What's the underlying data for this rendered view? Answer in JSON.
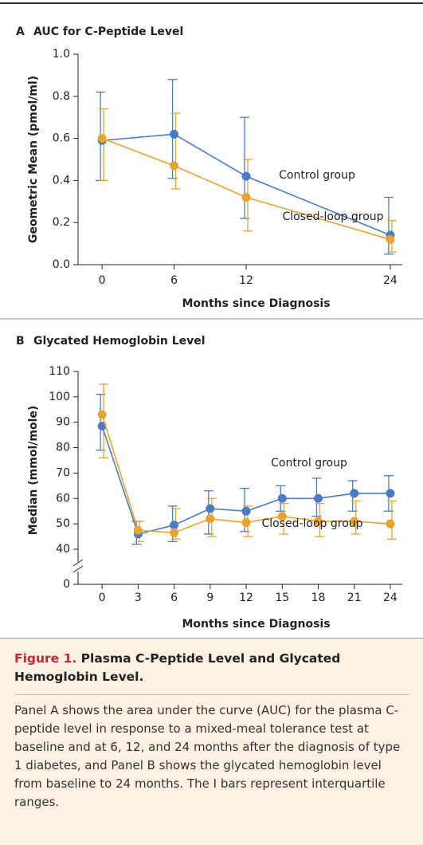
{
  "chart_data": [
    {
      "type": "line",
      "panel": "A",
      "title": "AUC for C-Peptide Level",
      "x_label": "Months since Diagnosis",
      "y_label": "Geometric Mean (pmol/ml)",
      "x": [
        0,
        6,
        12,
        24
      ],
      "xlim": [
        -2,
        25
      ],
      "xticks": [
        0,
        6,
        12,
        24
      ],
      "ylim": [
        0,
        1
      ],
      "yticks": [
        {
          "value": 0,
          "label": "0.0"
        },
        0.2,
        0.4,
        0.6,
        0.8,
        {
          "value": 1,
          "label": "1.0"
        }
      ],
      "series": [
        {
          "name": "Control group",
          "color": "#4a7cc4",
          "values": [
            0.59,
            0.62,
            0.42,
            0.14
          ],
          "lower": [
            0.4,
            0.41,
            0.22,
            0.05
          ],
          "upper": [
            0.82,
            0.88,
            0.7,
            0.32
          ]
        },
        {
          "name": "Closed-loop group",
          "color": "#e8a331",
          "values": [
            0.6,
            0.47,
            0.32,
            0.12
          ],
          "lower": [
            0.4,
            0.36,
            0.16,
            0.06
          ],
          "upper": [
            0.74,
            0.72,
            0.5,
            0.21
          ]
        }
      ]
    },
    {
      "type": "line",
      "panel": "B",
      "title": "Glycated Hemoglobin Level",
      "x_label": "Months since Diagnosis",
      "y_label": "Median (mmol/mole)",
      "x": [
        0,
        3,
        6,
        9,
        12,
        15,
        18,
        21,
        24
      ],
      "xlim": [
        -2,
        25
      ],
      "xticks": [
        0,
        3,
        6,
        9,
        12,
        15,
        18,
        21,
        24
      ],
      "ylim": [
        0,
        110
      ],
      "yticks": [
        0,
        40,
        50,
        60,
        70,
        80,
        90,
        100,
        110
      ],
      "axis_break": true,
      "series": [
        {
          "name": "Control group",
          "color": "#4a7cc4",
          "values": [
            88.5,
            46,
            49.5,
            56,
            55,
            60,
            60,
            62,
            62
          ],
          "lower": [
            79,
            42,
            43,
            46,
            47,
            55,
            53,
            55,
            55
          ],
          "upper": [
            101,
            51,
            57,
            63,
            64,
            65,
            68,
            67,
            69
          ]
        },
        {
          "name": "Closed-loop group",
          "color": "#e8a331",
          "values": [
            93,
            47.5,
            46.5,
            52,
            50.5,
            53,
            51,
            51,
            50
          ],
          "lower": [
            76,
            43,
            44,
            45,
            45,
            46,
            45,
            46,
            44
          ],
          "upper": [
            105,
            51,
            56,
            60,
            57,
            58,
            58,
            59,
            59
          ]
        }
      ]
    }
  ],
  "caption": {
    "label": "Figure 1.",
    "title": "Plasma C-Peptide Level and Glycated Hemoglobin Level.",
    "text": "Panel A shows the area under the curve (AUC) for the plasma C-peptide level in response to a mixed-meal tolerance test at baseline and at 6, 12, and 24 months after the diagnosis of type 1 diabetes, and Panel B shows the glycated hemoglobin level from baseline to 24 months. The I bars represent interquartile ranges."
  }
}
